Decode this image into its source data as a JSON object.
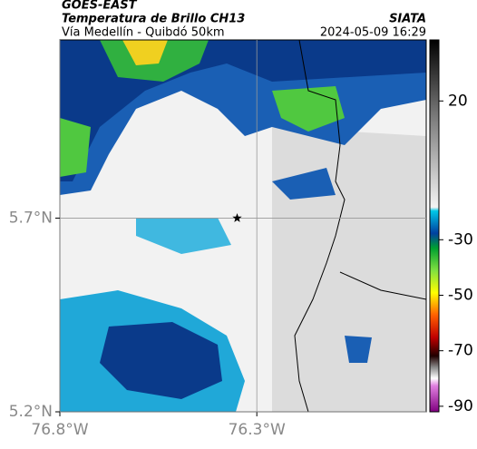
{
  "header": {
    "title": "GOES-EAST",
    "subtitle": "Temperatura de Brillo CH13",
    "route": "Vía Medellín - Quibdó 50km",
    "source": "SIATA",
    "datetime": "2024-05-09 16:29"
  },
  "map": {
    "xlim": [
      -76.8,
      -75.87
    ],
    "ylim": [
      5.2,
      6.16
    ],
    "xticks": [
      {
        "value": -76.8,
        "label": "76.8°W"
      },
      {
        "value": -76.3,
        "label": "76.3°W"
      }
    ],
    "yticks": [
      {
        "value": 5.2,
        "label": "5.2°N"
      },
      {
        "value": 5.7,
        "label": "5.7°N"
      }
    ],
    "grid": true,
    "marker": {
      "lon": -76.35,
      "lat": 5.7
    }
  },
  "colorbar": {
    "clim": [
      -92,
      42
    ],
    "ticks": [
      20,
      -30,
      -50,
      -70,
      -90
    ]
  }
}
